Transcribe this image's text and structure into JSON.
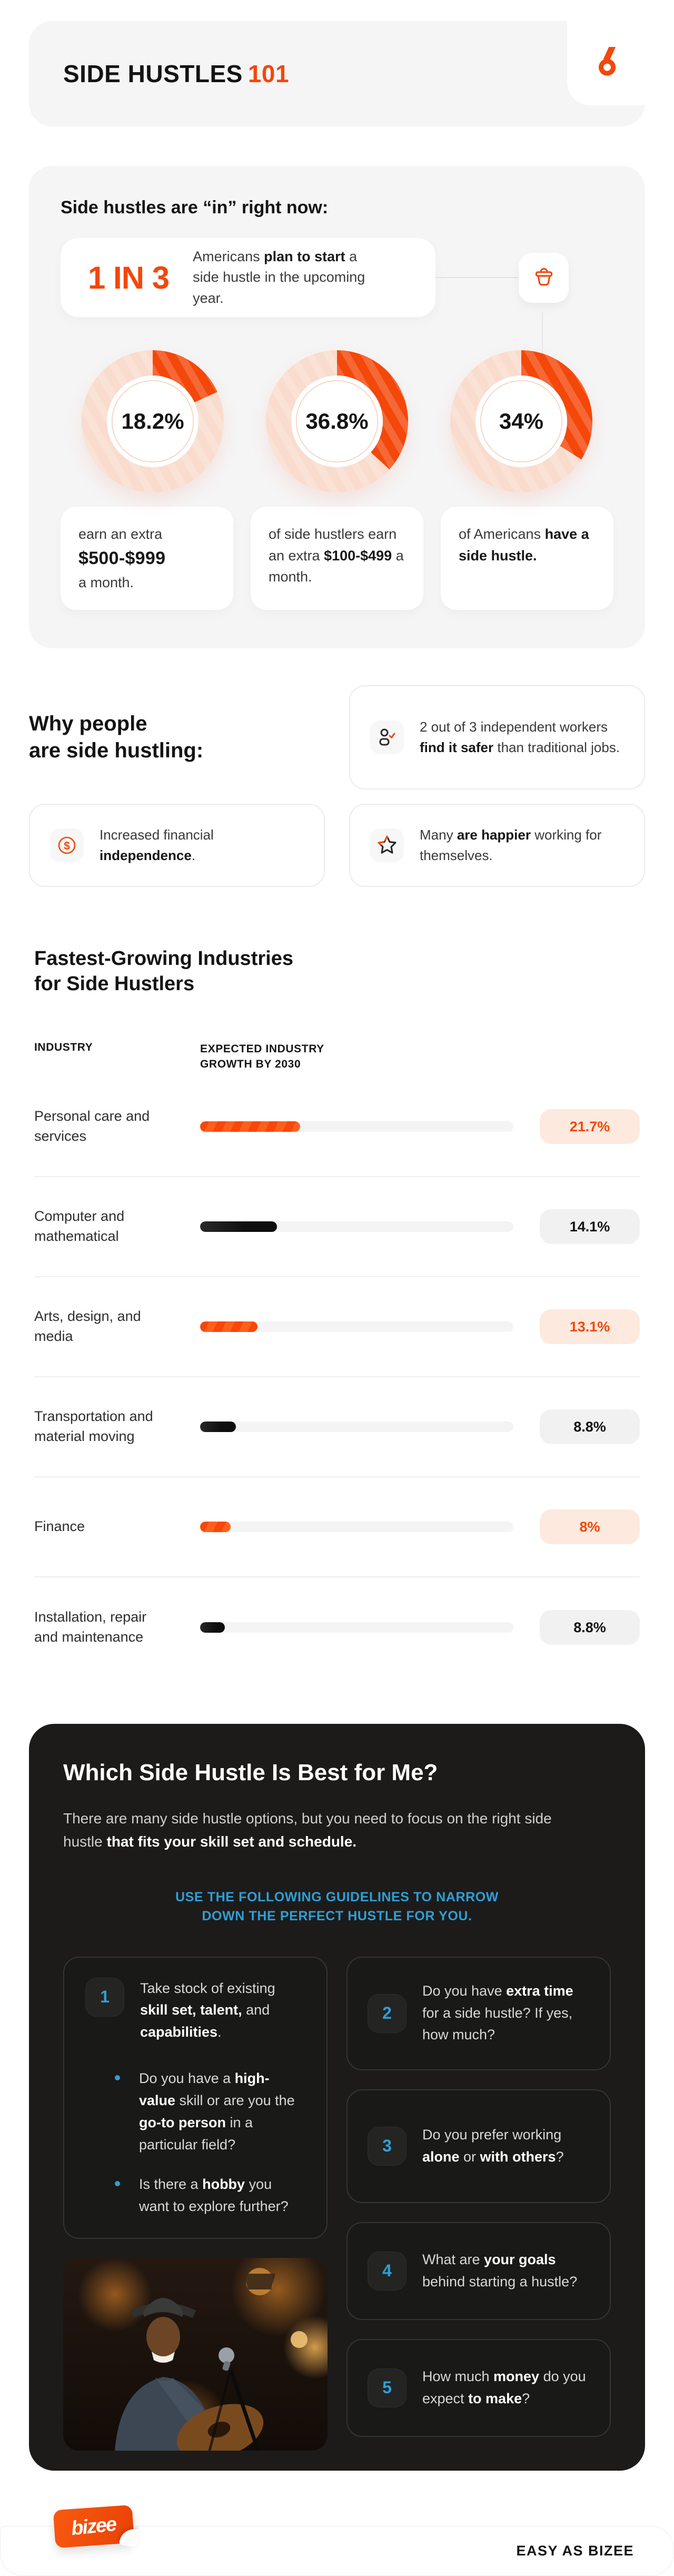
{
  "colors": {
    "orange": "#F4470A",
    "blue": "#2F9FD6",
    "dark_bg": "#1C1B1A",
    "peach_ring": "#F9DCCD"
  },
  "header": {
    "title": "SIDE HUSTLES",
    "title_accent": "101"
  },
  "trend": {
    "heading": "Side hustles are “in” right now:",
    "stat": {
      "value": "1 IN 3",
      "pre": "Americans ",
      "bold": "plan to start",
      "post": " a side hustle in the upcoming year."
    },
    "captions": [
      {
        "pre": "earn an extra",
        "bold": "$500-$999",
        "post": "a month."
      },
      {
        "pre": "of side hustlers earn an extra ",
        "bold": "$100-$499",
        "post": " a month."
      },
      {
        "pre": "of Americans ",
        "bold": "have a side hustle.",
        "post": ""
      }
    ]
  },
  "why": {
    "heading_l1": "Why people",
    "heading_l2": "are side hustling:",
    "cards": [
      {
        "icon": "user-check-icon",
        "pre": "2 out of 3 independent workers ",
        "bold": "find it safer",
        "post": " than traditional jobs."
      },
      {
        "icon": "dollar-circle-icon",
        "pre": "Increased financial ",
        "bold": "independence",
        "post": "."
      },
      {
        "icon": "star-icon",
        "pre": "Many ",
        "bold": "are happier",
        "post": " working for themselves."
      }
    ]
  },
  "industries": {
    "title_l1": "Fastest-Growing Industries",
    "title_l2": "for Side Hustlers"
  },
  "chart_data": [
    {
      "type": "donut",
      "title": "Side hustle statistics",
      "labels": [
        "18.2%",
        "36.8%",
        "34%"
      ],
      "values": [
        18.2,
        36.8,
        34
      ],
      "max": 100,
      "color": "#F4470A",
      "track_color": "#F9DCCD",
      "descriptions": [
        "earn an extra $500-$999 a month.",
        "of side hustlers earn an extra $100-$499 a month.",
        "of Americans have a side hustle."
      ],
      "legend_position": "below"
    },
    {
      "type": "bar",
      "title": "Fastest-Growing Industries for Side Hustlers",
      "col_headers": [
        "INDUSTRY",
        "EXPECTED INDUSTRY GROWTH BY 2030"
      ],
      "categories": [
        "Personal care and services",
        "Computer and mathematical",
        "Arts, design, and media",
        "Transportation and material moving",
        "Finance",
        "Installation, repair and maintenance"
      ],
      "values": [
        21.7,
        14.1,
        13.1,
        8.8,
        8,
        8.8
      ],
      "value_labels": [
        "21.7%",
        "14.1%",
        "13.1%",
        "8.8%",
        "8%",
        "8.8%"
      ],
      "bar_pcts": [
        32,
        24.6,
        18.3,
        11.4,
        9.8,
        7.9
      ],
      "bar_styles": [
        "orange",
        "black",
        "orange",
        "black",
        "orange",
        "black"
      ],
      "unit": "%",
      "xlabel": "",
      "ylabel": "",
      "grid": false
    }
  ],
  "quiz": {
    "title": "Which Side Hustle Is Best for Me?",
    "intro_pre": "There are many side hustle options, but you need to focus on the right side hustle ",
    "intro_bold": "that fits your skill set and schedule.",
    "guide_l1": "USE THE FOLLOWING GUIDELINES TO NARROW",
    "guide_l2": "DOWN THE PERFECT HUSTLE FOR YOU.",
    "cards": [
      {
        "num": "1",
        "pre": "Take stock of existing ",
        "b1": "skill set, talent,",
        "mid": " and ",
        "b2": "capabilities",
        "post": ".",
        "bullets": [
          {
            "pre": "Do you have a ",
            "b1": "high-value",
            "mid": " skill or are you the ",
            "b2": "go-to person",
            "post": " in a particular field?"
          },
          {
            "pre": "Is there a ",
            "b1": "hobby",
            "mid": " you want to explore further?",
            "b2": "",
            "post": ""
          }
        ]
      },
      {
        "num": "2",
        "pre": "Do you have ",
        "b1": "extra time",
        "mid": " for a side hustle? If yes, how much?",
        "b2": "",
        "post": ""
      },
      {
        "num": "3",
        "pre": "Do you prefer working ",
        "b1": "alone",
        "mid": " or ",
        "b2": "with others",
        "post": "?"
      },
      {
        "num": "4",
        "pre": "What are ",
        "b1": "your goals",
        "mid": " behind starting a hustle?",
        "b2": "",
        "post": ""
      },
      {
        "num": "5",
        "pre": "How much ",
        "b1": "money",
        "mid": " do you expect ",
        "b2": "to make",
        "post": "?"
      }
    ]
  },
  "footer": {
    "logo_text": "bizee",
    "tagline": "EASY AS BIZEE"
  }
}
